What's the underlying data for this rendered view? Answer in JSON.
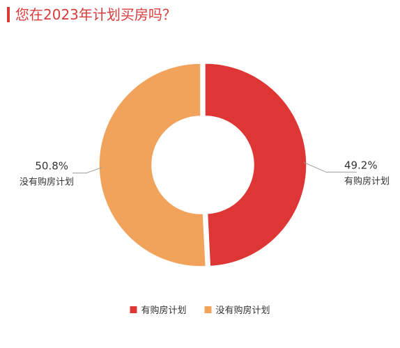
{
  "title": "您在2023年计划买房吗？",
  "chart_data": {
    "type": "pie",
    "variant": "donut",
    "title": "您在2023年计划买房吗？",
    "legend_position": "bottom",
    "slices": [
      {
        "name": "有购房计划",
        "value": 49.2,
        "label": "49.2%",
        "color": "#DE3535"
      },
      {
        "name": "没有购房计划",
        "value": 50.8,
        "label": "50.8%",
        "color": "#F2A35B"
      }
    ]
  }
}
